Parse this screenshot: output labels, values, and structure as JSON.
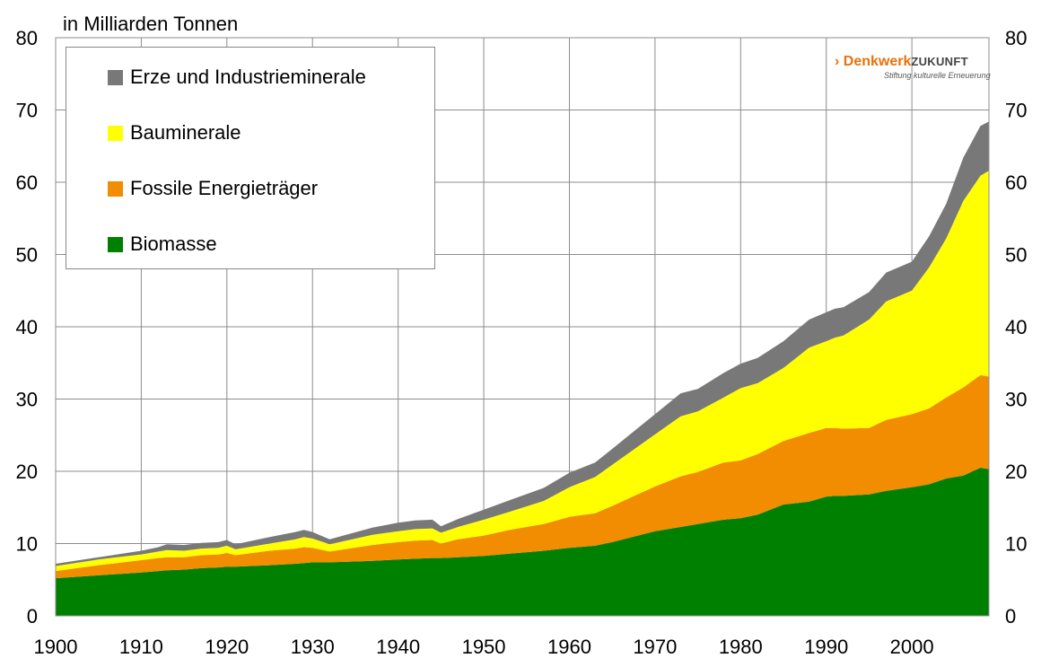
{
  "chart_data": {
    "type": "area",
    "stacked": true,
    "unit_label": "in Milliarden Tonnen",
    "xlim": [
      1900,
      2009
    ],
    "ylim": [
      0,
      80
    ],
    "x_ticks": [
      1900,
      1910,
      1920,
      1930,
      1940,
      1950,
      1960,
      1970,
      1980,
      1990,
      2000
    ],
    "y_ticks": [
      0,
      10,
      20,
      30,
      40,
      50,
      60,
      70,
      80
    ],
    "grid": true,
    "legend_position": "top-left",
    "x": [
      1900,
      1905,
      1910,
      1912,
      1913,
      1915,
      1917,
      1919,
      1920,
      1921,
      1925,
      1928,
      1929,
      1930,
      1932,
      1937,
      1940,
      1942,
      1944,
      1945,
      1947,
      1950,
      1953,
      1957,
      1960,
      1963,
      1965,
      1970,
      1973,
      1975,
      1978,
      1980,
      1982,
      1985,
      1988,
      1990,
      1991,
      1992,
      1995,
      1997,
      2000,
      2002,
      2004,
      2006,
      2008,
      2009
    ],
    "series": [
      {
        "name": "Biomasse",
        "color": "#008000",
        "values": [
          5.2,
          5.6,
          6.0,
          6.2,
          6.3,
          6.4,
          6.6,
          6.7,
          6.8,
          6.8,
          7.0,
          7.2,
          7.3,
          7.4,
          7.4,
          7.6,
          7.8,
          7.9,
          8.0,
          8.0,
          8.1,
          8.3,
          8.6,
          9.0,
          9.4,
          9.7,
          10.2,
          11.7,
          12.3,
          12.7,
          13.3,
          13.5,
          14.0,
          15.4,
          15.8,
          16.5,
          16.6,
          16.6,
          16.8,
          17.3,
          17.8,
          18.2,
          19.0,
          19.4,
          20.5,
          20.3
        ]
      },
      {
        "name": "Fossile Energieträger",
        "color": "#f28c00",
        "values": [
          1.0,
          1.4,
          1.7,
          1.8,
          1.8,
          1.7,
          1.8,
          1.8,
          1.9,
          1.6,
          2.0,
          2.1,
          2.2,
          2.0,
          1.5,
          2.2,
          2.4,
          2.5,
          2.5,
          2.0,
          2.5,
          2.8,
          3.3,
          3.7,
          4.3,
          4.5,
          5.0,
          6.2,
          7.0,
          7.2,
          7.9,
          8.0,
          8.4,
          8.8,
          9.5,
          9.5,
          9.4,
          9.3,
          9.2,
          9.8,
          10.1,
          10.5,
          11.2,
          12.2,
          12.8,
          12.8
        ]
      },
      {
        "name": "Bauminerale",
        "color": "#ffff00",
        "values": [
          0.7,
          0.8,
          0.8,
          0.9,
          1.0,
          0.9,
          0.9,
          0.9,
          1.0,
          0.8,
          1.0,
          1.3,
          1.4,
          1.3,
          1.0,
          1.4,
          1.5,
          1.6,
          1.6,
          1.5,
          1.7,
          2.2,
          2.5,
          3.2,
          4.1,
          5.0,
          5.7,
          7.2,
          8.3,
          8.4,
          9.0,
          10.0,
          9.8,
          10.1,
          11.8,
          12.0,
          12.5,
          12.9,
          15.0,
          16.4,
          17.1,
          19.5,
          22.0,
          25.8,
          27.6,
          28.5
        ]
      },
      {
        "name": "Erze und Industrieminerale",
        "color": "#787878",
        "values": [
          0.3,
          0.3,
          0.5,
          0.6,
          0.8,
          0.8,
          0.8,
          0.8,
          0.8,
          0.7,
          0.9,
          1.0,
          1.0,
          0.9,
          0.7,
          1.0,
          1.2,
          1.2,
          1.2,
          0.9,
          1.1,
          1.4,
          1.6,
          1.8,
          2.0,
          2.0,
          2.2,
          2.8,
          3.2,
          3.1,
          3.4,
          3.4,
          3.5,
          3.7,
          3.9,
          4.0,
          4.0,
          3.9,
          3.8,
          4.0,
          4.0,
          4.3,
          4.8,
          6.0,
          6.9,
          6.8
        ]
      }
    ]
  },
  "legend": {
    "items": [
      {
        "label": "Erze und Industrieminerale",
        "color": "#787878"
      },
      {
        "label": "Bauminerale",
        "color": "#ffff00"
      },
      {
        "label": "Fossile Energieträger",
        "color": "#f28c00"
      },
      {
        "label": "Biomasse",
        "color": "#008000"
      }
    ]
  },
  "logo": {
    "main": "Denkwerk",
    "main_suffix": "ZUKUNFT",
    "arrow": "›",
    "sub": "Stiftung kulturelle Erneuerung",
    "color": "#e8720c"
  }
}
